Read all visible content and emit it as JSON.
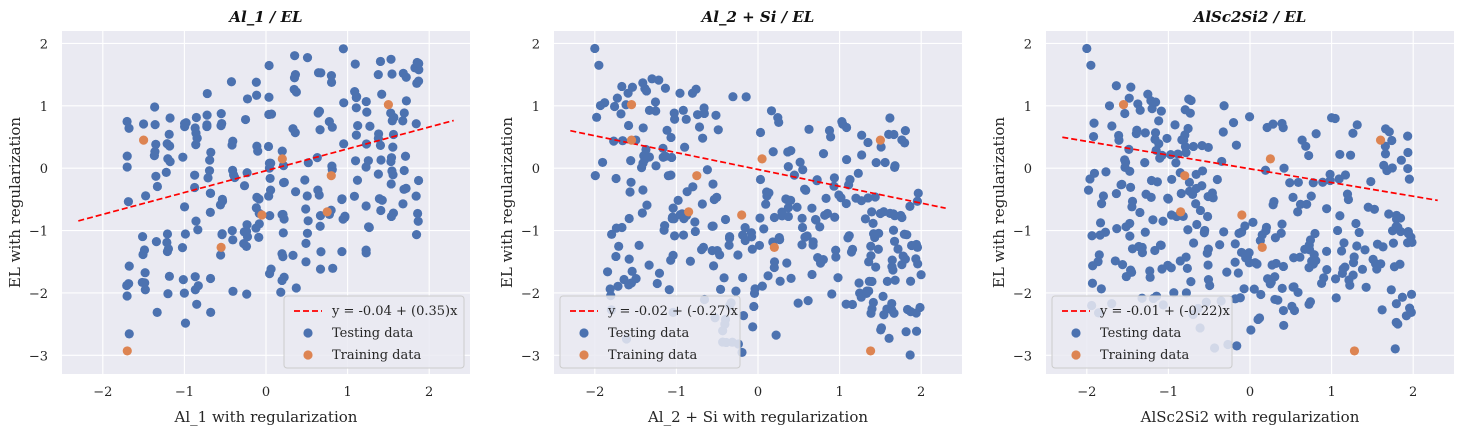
{
  "chart_data": [
    {
      "type": "scatter",
      "title": "Al_1 / EL",
      "xlabel": "Al_1 with regularization",
      "ylabel": "EL with regularization",
      "xlim": [
        -2.5,
        2.5
      ],
      "ylim": [
        -3.3,
        2.2
      ],
      "xticks": [
        -2,
        -1,
        0,
        1,
        2
      ],
      "yticks": [
        -3,
        -2,
        -1,
        0,
        1,
        2
      ],
      "grid": true,
      "legend_position": "bottom-right",
      "fit_line": {
        "label": "y = -0.04 + (0.35)x",
        "intercept": -0.04,
        "slope": 0.35,
        "x_range": [
          -2.3,
          2.3
        ],
        "color": "#FF0000"
      },
      "series": [
        {
          "name": "Testing data",
          "color": "#4C72B0",
          "pattern": "columns_pos",
          "points": []
        },
        {
          "name": "Training data",
          "color": "#DD8452",
          "points": [
            [
              -1.7,
              -2.93
            ],
            [
              -1.5,
              0.45
            ],
            [
              -0.55,
              -1.27
            ],
            [
              -0.05,
              -0.75
            ],
            [
              0.2,
              0.15
            ],
            [
              0.8,
              -0.12
            ],
            [
              0.75,
              -0.7
            ],
            [
              1.5,
              1.02
            ]
          ]
        }
      ]
    },
    {
      "type": "scatter",
      "title": "Al_2 + Si / EL",
      "xlabel": "Al_2 + Si with regularization",
      "ylabel": "EL with regularization",
      "xlim": [
        -2.5,
        2.5
      ],
      "ylim": [
        -3.3,
        2.2
      ],
      "xticks": [
        -2,
        -1,
        0,
        1,
        2
      ],
      "yticks": [
        -3,
        -2,
        -1,
        0,
        1,
        2
      ],
      "grid": true,
      "legend_position": "bottom-left",
      "fit_line": {
        "label": "y = -0.02 + (-0.27)x",
        "intercept": -0.02,
        "slope": -0.27,
        "x_range": [
          -2.3,
          2.3
        ],
        "color": "#FF0000"
      },
      "series": [
        {
          "name": "Testing data",
          "color": "#4C72B0",
          "pattern": "v_shape",
          "points": []
        },
        {
          "name": "Training data",
          "color": "#DD8452",
          "points": [
            [
              -1.55,
              1.02
            ],
            [
              -1.55,
              0.45
            ],
            [
              -0.75,
              -0.12
            ],
            [
              -0.85,
              -0.7
            ],
            [
              -0.2,
              -0.75
            ],
            [
              0.05,
              0.15
            ],
            [
              0.2,
              -1.27
            ],
            [
              1.38,
              -2.93
            ],
            [
              1.5,
              0.45
            ]
          ]
        }
      ]
    },
    {
      "type": "scatter",
      "title": "AlSc2Si2 / EL",
      "xlabel": "AlSc2Si2 with regularization",
      "ylabel": "EL with regularization",
      "xlim": [
        -2.5,
        2.5
      ],
      "ylim": [
        -3.3,
        2.2
      ],
      "xticks": [
        -2,
        -1,
        0,
        1,
        2
      ],
      "yticks": [
        -3,
        -2,
        -1,
        0,
        1,
        2
      ],
      "grid": true,
      "legend_position": "bottom-left",
      "fit_line": {
        "label": "y = -0.01 + (-0.22)x",
        "intercept": -0.01,
        "slope": -0.22,
        "x_range": [
          -2.3,
          2.3
        ],
        "color": "#FF0000"
      },
      "series": [
        {
          "name": "Testing data",
          "color": "#4C72B0",
          "pattern": "v_shape_b",
          "points": []
        },
        {
          "name": "Training data",
          "color": "#DD8452",
          "points": [
            [
              -1.55,
              1.02
            ],
            [
              -0.85,
              -0.7
            ],
            [
              -0.8,
              -0.12
            ],
            [
              -0.1,
              -0.75
            ],
            [
              0.15,
              -1.27
            ],
            [
              0.25,
              0.15
            ],
            [
              1.28,
              -2.93
            ],
            [
              1.6,
              0.45
            ]
          ]
        }
      ]
    }
  ]
}
